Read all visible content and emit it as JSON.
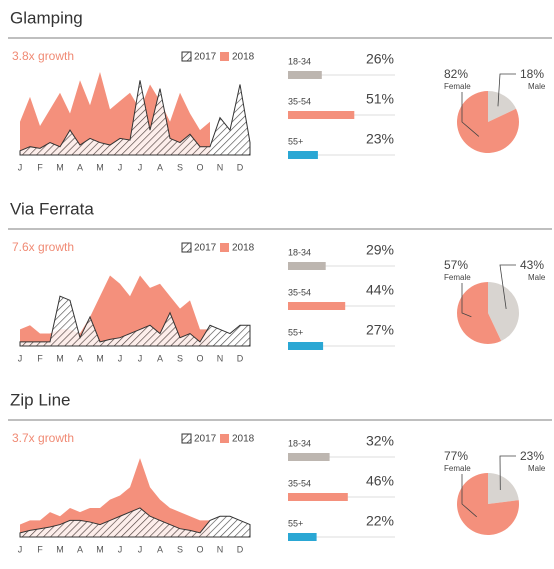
{
  "chart_data": [
    {
      "title": "Glamping",
      "area": {
        "type": "area",
        "subtitle": "3.8x growth",
        "categories": [
          "J",
          null,
          "F",
          null,
          "M",
          null,
          "A",
          null,
          "M",
          null,
          "J",
          null,
          "J",
          null,
          "A",
          null,
          "S",
          null,
          "O",
          null,
          "N",
          null,
          "D",
          null
        ],
        "ylim": [
          0,
          100
        ],
        "series": [
          {
            "name": "2017",
            "color": "#333333",
            "values": [
              5,
              10,
              8,
              15,
              10,
              30,
              12,
              20,
              15,
              12,
              20,
              18,
              90,
              30,
              80,
              20,
              15,
              25,
              10,
              10,
              45,
              30,
              85,
              15
            ]
          },
          {
            "name": "2018",
            "color": "#f4907c",
            "values": [
              40,
              70,
              35,
              55,
              75,
              50,
              90,
              60,
              100,
              55,
              65,
              75,
              55,
              85,
              65,
              40,
              75,
              50,
              30,
              40,
              null,
              null,
              null,
              null
            ]
          }
        ]
      },
      "ages": {
        "type": "bar",
        "categories": [
          "18-34",
          "35-54",
          "55+"
        ],
        "values": [
          26,
          51,
          23
        ],
        "value_labels": [
          "26%",
          "51%",
          "23%"
        ],
        "colors": [
          "#bdb6b0",
          "#f4907c",
          "#2aa7d4"
        ]
      },
      "gender": {
        "type": "pie",
        "categories": [
          "Female",
          "Male"
        ],
        "values": [
          82,
          18
        ],
        "value_labels": [
          "82%",
          "18%"
        ],
        "colors": [
          "#f4907c",
          "#d8d4d0"
        ]
      }
    },
    {
      "title": "Via Ferrata",
      "area": {
        "type": "area",
        "subtitle": "7.6x growth",
        "categories": [
          "J",
          null,
          "F",
          null,
          "M",
          null,
          "A",
          null,
          "M",
          null,
          "J",
          null,
          "J",
          null,
          "A",
          null,
          "S",
          null,
          "O",
          null,
          "N",
          null,
          "D",
          null
        ],
        "ylim": [
          0,
          100
        ],
        "series": [
          {
            "name": "2017",
            "color": "#333333",
            "values": [
              5,
              5,
              5,
              5,
              60,
              55,
              10,
              35,
              5,
              8,
              10,
              15,
              20,
              25,
              15,
              40,
              10,
              15,
              5,
              25,
              20,
              15,
              25,
              25
            ]
          },
          {
            "name": "2018",
            "color": "#f4907c",
            "values": [
              20,
              25,
              15,
              15,
              20,
              20,
              15,
              35,
              60,
              85,
              75,
              60,
              85,
              70,
              75,
              60,
              45,
              55,
              20,
              20,
              null,
              null,
              null,
              null
            ]
          }
        ]
      },
      "ages": {
        "type": "bar",
        "categories": [
          "18-34",
          "35-54",
          "55+"
        ],
        "values": [
          29,
          44,
          27
        ],
        "value_labels": [
          "29%",
          "44%",
          "27%"
        ],
        "colors": [
          "#bdb6b0",
          "#f4907c",
          "#2aa7d4"
        ]
      },
      "gender": {
        "type": "pie",
        "categories": [
          "Female",
          "Male"
        ],
        "values": [
          57,
          43
        ],
        "value_labels": [
          "57%",
          "43%"
        ],
        "colors": [
          "#f4907c",
          "#d8d4d0"
        ]
      }
    },
    {
      "title": "Zip Line",
      "area": {
        "type": "area",
        "subtitle": "3.7x growth",
        "categories": [
          "J",
          null,
          "F",
          null,
          "M",
          null,
          "A",
          null,
          "M",
          null,
          "J",
          null,
          "J",
          null,
          "A",
          null,
          "S",
          null,
          "O",
          null,
          "N",
          null,
          "D",
          null
        ],
        "ylim": [
          0,
          100
        ],
        "series": [
          {
            "name": "2017",
            "color": "#333333",
            "values": [
              5,
              8,
              10,
              12,
              15,
              20,
              20,
              18,
              15,
              20,
              25,
              30,
              35,
              25,
              20,
              15,
              10,
              8,
              5,
              20,
              25,
              25,
              20,
              15
            ]
          },
          {
            "name": "2018",
            "color": "#f4907c",
            "values": [
              15,
              20,
              20,
              30,
              25,
              35,
              30,
              35,
              35,
              45,
              50,
              60,
              95,
              60,
              45,
              35,
              30,
              25,
              20,
              20,
              null,
              null,
              null,
              null
            ]
          }
        ]
      },
      "ages": {
        "type": "bar",
        "categories": [
          "18-34",
          "35-54",
          "55+"
        ],
        "values": [
          32,
          46,
          22
        ],
        "value_labels": [
          "32%",
          "46%",
          "22%"
        ],
        "colors": [
          "#bdb6b0",
          "#f4907c",
          "#2aa7d4"
        ]
      },
      "gender": {
        "type": "pie",
        "categories": [
          "Female",
          "Male"
        ],
        "values": [
          77,
          23
        ],
        "value_labels": [
          "77%",
          "23%"
        ],
        "colors": [
          "#f4907c",
          "#d8d4d0"
        ]
      }
    }
  ]
}
